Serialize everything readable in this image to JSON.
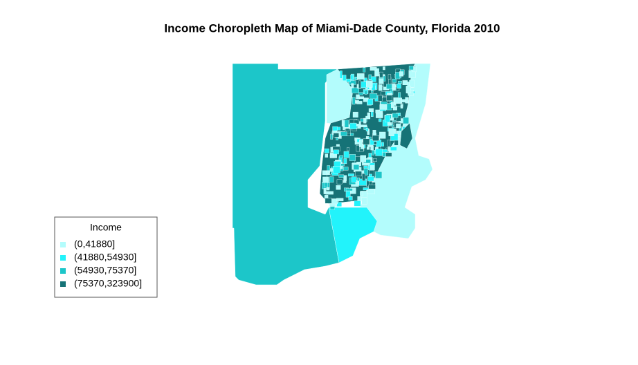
{
  "title": "Income Choropleth Map of Miami-Dade County, Florida 2010",
  "legend": {
    "title": "Income",
    "items": [
      {
        "label": "(0,41880]",
        "color": "#b3fcfc"
      },
      {
        "label": "(41880,54930]",
        "color": "#22f3fb"
      },
      {
        "label": "(54930,75370]",
        "color": "#1cc6c9"
      },
      {
        "label": "(75370,323900]",
        "color": "#167377"
      }
    ]
  }
}
